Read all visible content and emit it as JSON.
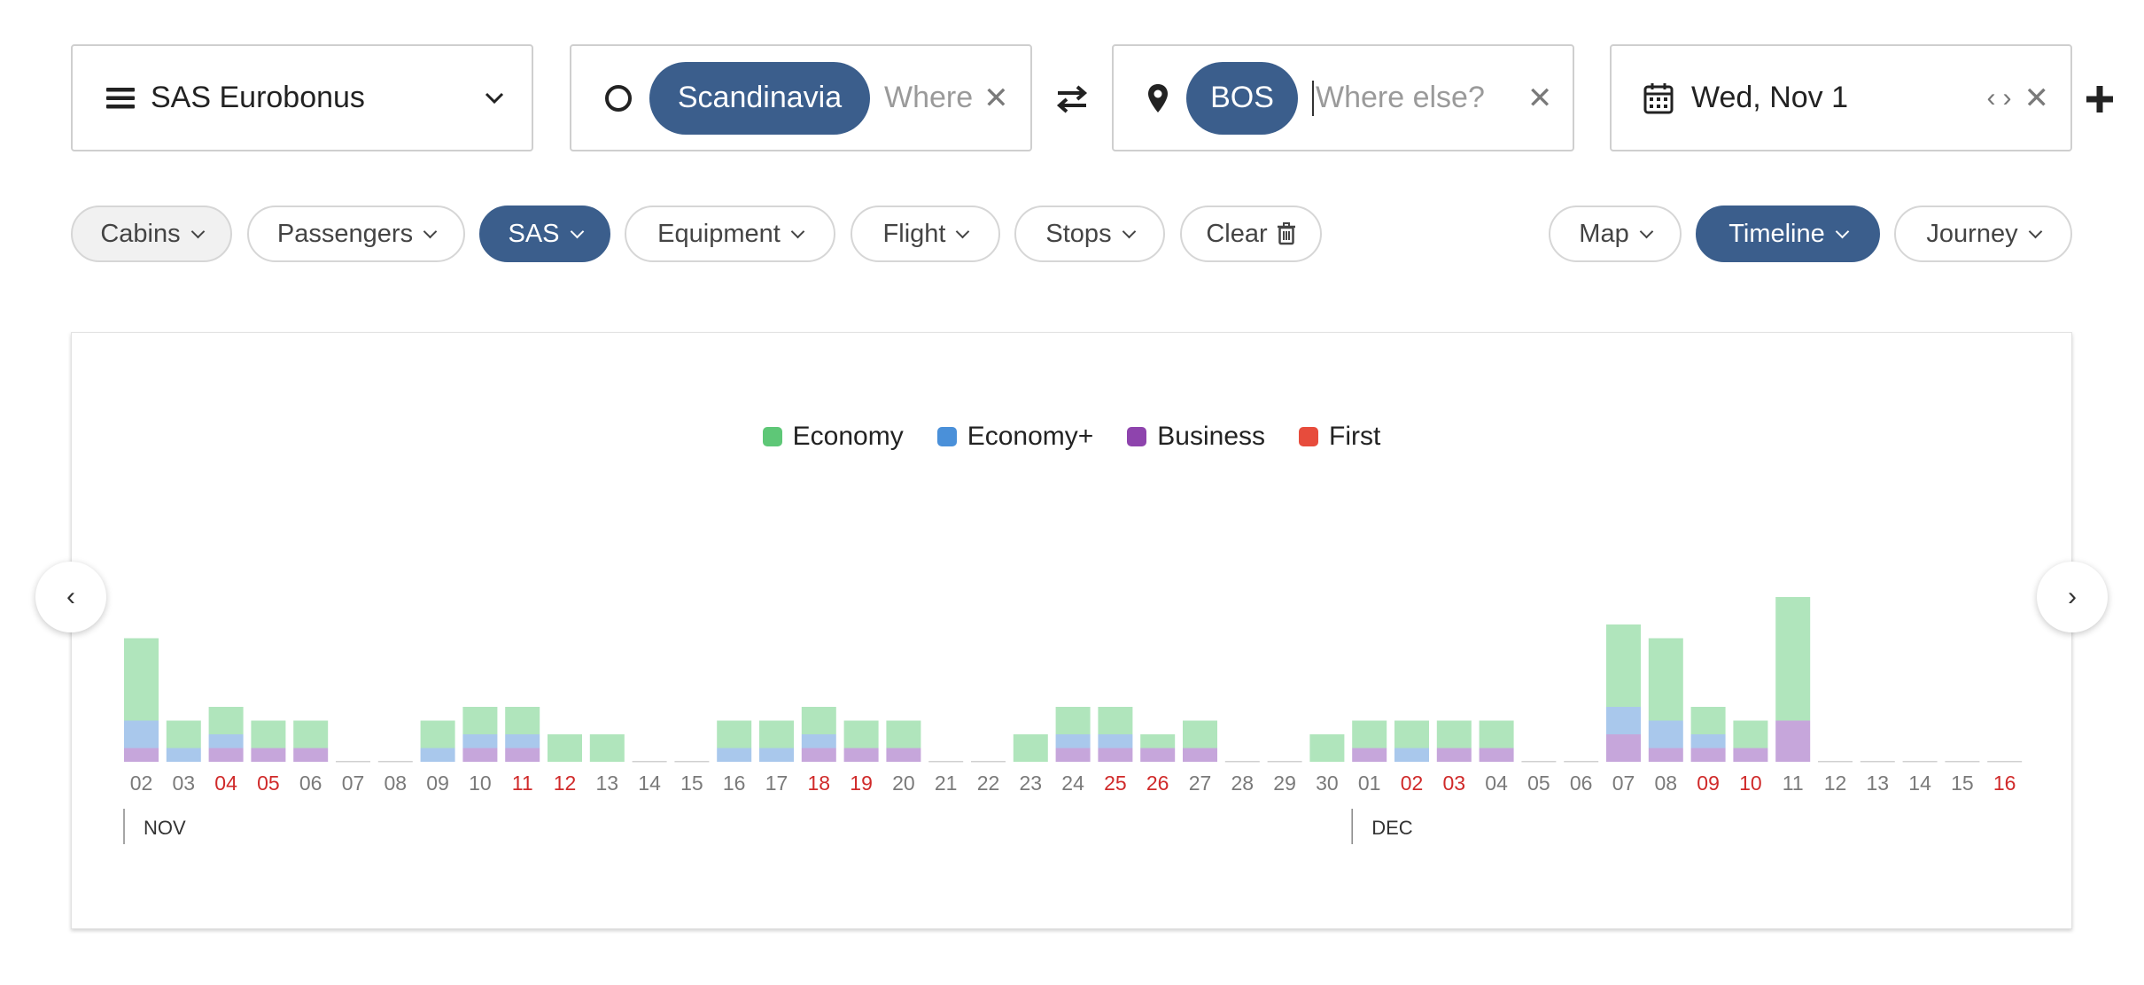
{
  "program": {
    "label": "SAS Eurobonus"
  },
  "origin": {
    "chip": "Scandinavia",
    "placeholder": "Where"
  },
  "destination": {
    "chip": "BOS",
    "placeholder": "Where else?"
  },
  "date": {
    "label": "Wed, Nov 1"
  },
  "filters": [
    {
      "label": "Cabins",
      "state": "grey"
    },
    {
      "label": "Passengers",
      "state": "default"
    },
    {
      "label": "SAS",
      "state": "active"
    },
    {
      "label": "Equipment",
      "state": "default"
    },
    {
      "label": "Flight",
      "state": "default"
    },
    {
      "label": "Stops",
      "state": "default"
    },
    {
      "label": "Clear",
      "state": "clear"
    }
  ],
  "views": [
    {
      "label": "Map",
      "state": "default"
    },
    {
      "label": "Timeline",
      "state": "active"
    },
    {
      "label": "Journey",
      "state": "default"
    }
  ],
  "colors": {
    "accent": "#3b5e8c",
    "economy": "#b0e5bc",
    "economy_plus": "#a9c8ec",
    "business": "#c6a6db",
    "first": "#e06a5c",
    "weekend_label": "#d02a2a",
    "weekday_label": "#7a7a7a"
  },
  "chart_data": {
    "type": "bar",
    "stacked": true,
    "legend": [
      "Economy",
      "Economy+",
      "Business",
      "First"
    ],
    "legend_colors": [
      "#5ec777",
      "#4a90d9",
      "#8e44ad",
      "#e74c3c"
    ],
    "categories": [
      "02",
      "03",
      "04",
      "05",
      "06",
      "07",
      "08",
      "09",
      "10",
      "11",
      "12",
      "13",
      "14",
      "15",
      "16",
      "17",
      "18",
      "19",
      "20",
      "21",
      "22",
      "23",
      "24",
      "25",
      "26",
      "27",
      "28",
      "29",
      "30",
      "01",
      "02",
      "03",
      "04",
      "05",
      "06",
      "07",
      "08",
      "09",
      "10",
      "11",
      "12",
      "13",
      "14",
      "15",
      "16"
    ],
    "weekend": [
      false,
      false,
      true,
      true,
      false,
      false,
      false,
      false,
      false,
      true,
      true,
      false,
      false,
      false,
      false,
      false,
      true,
      true,
      false,
      false,
      false,
      false,
      false,
      true,
      true,
      false,
      false,
      false,
      false,
      false,
      true,
      true,
      false,
      false,
      false,
      false,
      false,
      true,
      true,
      false,
      false,
      false,
      false,
      false,
      true
    ],
    "months": [
      {
        "label": "NOV",
        "start_index": 0
      },
      {
        "label": "DEC",
        "start_index": 29
      }
    ],
    "series": [
      {
        "name": "Business",
        "values": [
          1,
          0,
          1,
          1,
          1,
          0,
          0,
          0,
          1,
          1,
          0,
          0,
          0,
          0,
          0,
          0,
          1,
          1,
          1,
          0,
          0,
          0,
          1,
          1,
          1,
          1,
          0,
          0,
          0,
          1,
          0,
          1,
          1,
          0,
          0,
          2,
          1,
          1,
          1,
          3,
          0,
          0,
          0,
          0,
          0
        ]
      },
      {
        "name": "Economy+",
        "values": [
          2,
          1,
          1,
          0,
          0,
          0,
          0,
          1,
          1,
          1,
          0,
          0,
          0,
          0,
          1,
          1,
          1,
          0,
          0,
          0,
          0,
          0,
          1,
          1,
          0,
          0,
          0,
          0,
          0,
          0,
          1,
          0,
          0,
          0,
          0,
          2,
          2,
          1,
          0,
          0,
          0,
          0,
          0,
          0,
          0
        ]
      },
      {
        "name": "Economy",
        "values": [
          6,
          2,
          2,
          2,
          2,
          0,
          0,
          2,
          2,
          2,
          2,
          2,
          0,
          0,
          2,
          2,
          2,
          2,
          2,
          0,
          0,
          2,
          2,
          2,
          1,
          2,
          0,
          0,
          2,
          2,
          2,
          2,
          2,
          0,
          0,
          6,
          6,
          2,
          2,
          9,
          0,
          0,
          0,
          0,
          0
        ]
      },
      {
        "name": "First",
        "values": [
          0,
          0,
          0,
          0,
          0,
          0,
          0,
          0,
          0,
          0,
          0,
          0,
          0,
          0,
          0,
          0,
          0,
          0,
          0,
          0,
          0,
          0,
          0,
          0,
          0,
          0,
          0,
          0,
          0,
          0,
          0,
          0,
          0,
          0,
          0,
          0,
          0,
          0,
          0,
          0,
          0,
          0,
          0,
          0,
          0
        ]
      }
    ]
  }
}
